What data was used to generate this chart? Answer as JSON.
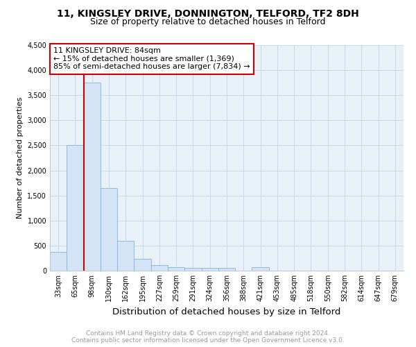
{
  "title1": "11, KINGSLEY DRIVE, DONNINGTON, TELFORD, TF2 8DH",
  "title2": "Size of property relative to detached houses in Telford",
  "xlabel": "Distribution of detached houses by size in Telford",
  "ylabel": "Number of detached properties",
  "footnote1": "Contains HM Land Registry data © Crown copyright and database right 2024.",
  "footnote2": "Contains public sector information licensed under the Open Government Licence v3.0.",
  "categories": [
    "33sqm",
    "65sqm",
    "98sqm",
    "130sqm",
    "162sqm",
    "195sqm",
    "227sqm",
    "259sqm",
    "291sqm",
    "324sqm",
    "356sqm",
    "388sqm",
    "421sqm",
    "453sqm",
    "485sqm",
    "518sqm",
    "550sqm",
    "582sqm",
    "614sqm",
    "647sqm",
    "679sqm"
  ],
  "values": [
    380,
    2500,
    3750,
    1650,
    600,
    240,
    110,
    70,
    50,
    50,
    50,
    0,
    70,
    0,
    0,
    0,
    0,
    0,
    0,
    0,
    0
  ],
  "bar_color": "#d4e4f7",
  "bar_edge_color": "#7fb3e0",
  "grid_color": "#c8d8ec",
  "background_color": "#e8f0f8",
  "property_label": "11 KINGSLEY DRIVE: 84sqm",
  "annotation_line1": "← 15% of detached houses are smaller (1,369)",
  "annotation_line2": "85% of semi-detached houses are larger (7,834) →",
  "vline_color": "#cc0000",
  "annotation_box_edgecolor": "#cc0000",
  "ylim": [
    0,
    4500
  ],
  "yticks": [
    0,
    500,
    1000,
    1500,
    2000,
    2500,
    3000,
    3500,
    4000,
    4500
  ],
  "title1_fontsize": 10,
  "title2_fontsize": 9,
  "xlabel_fontsize": 9.5,
  "ylabel_fontsize": 8,
  "tick_fontsize": 7,
  "annotation_fontsize": 8,
  "footnote_fontsize": 6.5,
  "vline_x_index": 1.5
}
